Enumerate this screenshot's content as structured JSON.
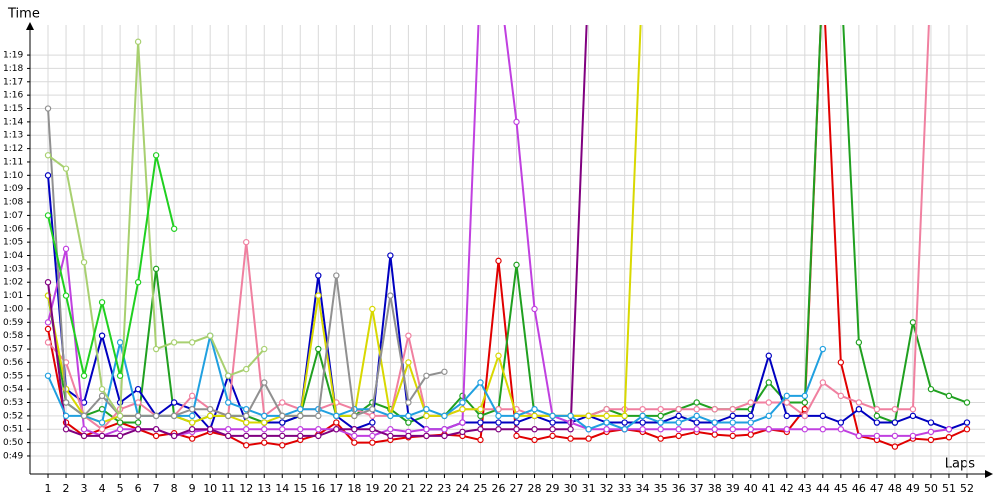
{
  "chart_data": {
    "type": "line",
    "y_label": "Time",
    "x_label": "Laps",
    "xlim": [
      0,
      53
    ],
    "ylim": [
      47.65,
      81.25
    ],
    "grid": true,
    "x": [
      1,
      2,
      3,
      4,
      5,
      6,
      7,
      8,
      9,
      10,
      11,
      12,
      13,
      14,
      15,
      16,
      17,
      18,
      19,
      20,
      21,
      22,
      23,
      24,
      25,
      26,
      27,
      28,
      29,
      30,
      31,
      32,
      33,
      34,
      35,
      36,
      37,
      38,
      39,
      40,
      41,
      42,
      43,
      44,
      45,
      46,
      47,
      48,
      49,
      50,
      51,
      52
    ],
    "yticks": [
      {
        "value": 49,
        "label": "0:49"
      },
      {
        "value": 50,
        "label": "0:50"
      },
      {
        "value": 51,
        "label": "0:51"
      },
      {
        "value": 52,
        "label": "0:52"
      },
      {
        "value": 53,
        "label": "0:53"
      },
      {
        "value": 54,
        "label": "0:54"
      },
      {
        "value": 55,
        "label": "0:55"
      },
      {
        "value": 56,
        "label": "0:56"
      },
      {
        "value": 57,
        "label": "0:57"
      },
      {
        "value": 58,
        "label": "0:58"
      },
      {
        "value": 59,
        "label": "0:59"
      },
      {
        "value": 60,
        "label": "1:00"
      },
      {
        "value": 61,
        "label": "1:01"
      },
      {
        "value": 62,
        "label": "1:02"
      },
      {
        "value": 63,
        "label": "1:03"
      },
      {
        "value": 64,
        "label": "1:04"
      },
      {
        "value": 65,
        "label": "1:05"
      },
      {
        "value": 66,
        "label": "1:06"
      },
      {
        "value": 67,
        "label": "1:07"
      },
      {
        "value": 68,
        "label": "1:08"
      },
      {
        "value": 69,
        "label": "1:09"
      },
      {
        "value": 70,
        "label": "1:10"
      },
      {
        "value": 71,
        "label": "1:11"
      },
      {
        "value": 72,
        "label": "1:12"
      },
      {
        "value": 73,
        "label": "1:13"
      },
      {
        "value": 74,
        "label": "1:14"
      },
      {
        "value": 75,
        "label": "1:15"
      },
      {
        "value": 76,
        "label": "1:16"
      },
      {
        "value": 77,
        "label": "1:17"
      },
      {
        "value": 78,
        "label": "1:18"
      },
      {
        "value": 79,
        "label": "1:19"
      }
    ],
    "series": [
      {
        "color": "#e00000",
        "values": [
          58.5,
          51.5,
          50.5,
          51,
          51.5,
          51,
          50.5,
          50.7,
          50.3,
          50.8,
          50.5,
          49.8,
          50,
          49.8,
          50.2,
          50.6,
          51.5,
          50,
          50,
          50.2,
          50.4,
          50.5,
          50.6,
          50.5,
          50.2,
          63.6,
          50.5,
          50.2,
          50.5,
          50.3,
          50.3,
          50.8,
          51,
          50.8,
          50.3,
          50.5,
          50.8,
          50.6,
          50.5,
          50.6,
          51,
          50.8,
          52.5,
          85,
          56,
          50.5,
          50.2,
          49.7,
          50.3,
          50.2,
          50.4,
          51
        ]
      },
      {
        "color": "#20a020",
        "values": [
          61,
          53,
          52,
          52.5,
          51.5,
          51.5,
          63,
          52,
          51.5,
          52,
          52,
          52,
          51.5,
          51.5,
          52,
          57,
          52,
          52,
          53,
          52.5,
          51.5,
          52,
          52,
          53.5,
          52,
          52.5,
          63.3,
          52,
          52,
          52,
          52,
          52.5,
          52,
          52,
          52,
          52.5,
          53,
          52.5,
          52.5,
          52.5,
          54.5,
          53,
          53,
          85,
          85,
          57.5,
          52,
          51.5,
          59,
          54,
          53.5,
          53
        ]
      },
      {
        "color": "#0000c0",
        "values": [
          70,
          54,
          53,
          58,
          53,
          54,
          52,
          53,
          52.5,
          51,
          55,
          51.5,
          51.5,
          51.5,
          52,
          62.5,
          52,
          51,
          51.5,
          64,
          52,
          51,
          51,
          51.5,
          51.5,
          51.5,
          51.5,
          52,
          51.5,
          51.5,
          52,
          51.5,
          51.5,
          51.5,
          51.5,
          52,
          51.5,
          51.5,
          52,
          52,
          56.5,
          52,
          52,
          52,
          51.5,
          52.5,
          51.5,
          51.5,
          52,
          51.5,
          51,
          51.5
        ]
      },
      {
        "color": "#c040e0",
        "values": [
          59,
          64.5,
          51,
          50.5,
          51,
          51,
          51,
          50.5,
          50.8,
          51,
          51,
          51,
          51,
          51,
          51,
          51,
          51,
          50.5,
          50.5,
          51,
          50.8,
          51,
          51,
          51.5,
          85,
          85,
          74,
          60,
          52,
          51.5,
          51,
          51,
          51,
          51,
          51,
          51,
          51,
          51,
          51,
          51,
          51,
          51,
          51,
          51,
          51,
          50.5,
          50.5,
          50.5,
          50.5,
          50.8,
          51,
          null
        ]
      },
      {
        "color": "#f080a0",
        "values": [
          57.5,
          56,
          52,
          51,
          52.5,
          53,
          52,
          52,
          53.5,
          52.5,
          52,
          65,
          52,
          53,
          52.5,
          52.5,
          53,
          52.5,
          52,
          52,
          58,
          52,
          52,
          52.5,
          52.5,
          52.5,
          52.5,
          52,
          52,
          52,
          52,
          52.5,
          52.5,
          52.5,
          52.5,
          52.5,
          52.5,
          52.5,
          52.5,
          53,
          53,
          53,
          52,
          54.5,
          53.5,
          53,
          52.5,
          52.5,
          52.5,
          85,
          null,
          null
        ]
      },
      {
        "color": "#d8d800",
        "values": [
          61,
          54,
          52,
          51.5,
          52,
          52,
          52,
          52,
          51.5,
          52,
          52,
          51.5,
          51.5,
          52,
          52,
          61,
          52,
          52,
          60,
          52,
          56,
          52,
          52,
          52.5,
          52.5,
          56.5,
          52,
          52,
          52,
          52,
          52,
          52,
          52,
          85,
          null,
          null,
          null,
          null,
          null,
          null,
          null,
          null,
          null,
          null,
          null,
          null,
          null,
          null,
          null,
          null,
          null,
          null
        ]
      },
      {
        "color": "#800080",
        "values": [
          62,
          51,
          50.5,
          50.5,
          50.5,
          51,
          51,
          50.5,
          51,
          51,
          50.5,
          50.5,
          50.5,
          50.5,
          50.5,
          50.5,
          51,
          51,
          51,
          50.5,
          50.5,
          50.5,
          50.5,
          50.8,
          51,
          51,
          51,
          51,
          51,
          51,
          85,
          null,
          null,
          null,
          null,
          null,
          null,
          null,
          null,
          null,
          null,
          null,
          null,
          null,
          null,
          null,
          null,
          null,
          null,
          null,
          null,
          null
        ]
      },
      {
        "color": "#20a0e0",
        "values": [
          55,
          52,
          52,
          51.5,
          57.5,
          52,
          52,
          52,
          52,
          58,
          53,
          52.5,
          52,
          52,
          52.5,
          52.5,
          52,
          52.5,
          52.5,
          52,
          52,
          52.5,
          52,
          53,
          54.5,
          52,
          52,
          52.5,
          52,
          52,
          51,
          51.5,
          51,
          52,
          51.5,
          51.5,
          52,
          51.5,
          51.5,
          51.5,
          52,
          53.5,
          53.5,
          57,
          null,
          null,
          null,
          null,
          null,
          null,
          null,
          null
        ]
      },
      {
        "color": "#909090",
        "values": [
          75,
          53,
          52,
          53.5,
          52,
          52,
          52,
          52,
          52.5,
          52.5,
          52,
          52,
          54.5,
          52,
          52,
          52,
          62.5,
          52,
          52.5,
          61,
          53,
          55,
          55.3,
          null,
          null,
          null,
          null,
          null,
          null,
          null,
          null,
          null,
          null,
          null,
          null,
          null,
          null,
          null,
          null,
          null,
          null,
          null,
          null,
          null,
          null,
          null,
          null,
          null,
          null,
          null,
          null,
          null
        ]
      },
      {
        "color": "#a8d070",
        "values": [
          71.5,
          70.5,
          63.5,
          54,
          52,
          80,
          57,
          57.5,
          57.5,
          58,
          55,
          55.5,
          57,
          null,
          null,
          null,
          null,
          null,
          null,
          null,
          null,
          null,
          null,
          null,
          null,
          null,
          null,
          null,
          null,
          null,
          null,
          null,
          null,
          null,
          null,
          null,
          null,
          null,
          null,
          null,
          null,
          null,
          null,
          null,
          null,
          null,
          null,
          null,
          null,
          null,
          null,
          null
        ]
      },
      {
        "color": "#20d020",
        "values": [
          67,
          61,
          55,
          60.5,
          55,
          62,
          71.5,
          66,
          null,
          null,
          null,
          null,
          null,
          null,
          null,
          null,
          null,
          null,
          null,
          null,
          null,
          null,
          null,
          null,
          null,
          null,
          null,
          null,
          null,
          null,
          null,
          null,
          null,
          null,
          null,
          null,
          null,
          null,
          null,
          null,
          null,
          null,
          null,
          null,
          null,
          null,
          null,
          null,
          null,
          null,
          null,
          null
        ]
      }
    ]
  }
}
